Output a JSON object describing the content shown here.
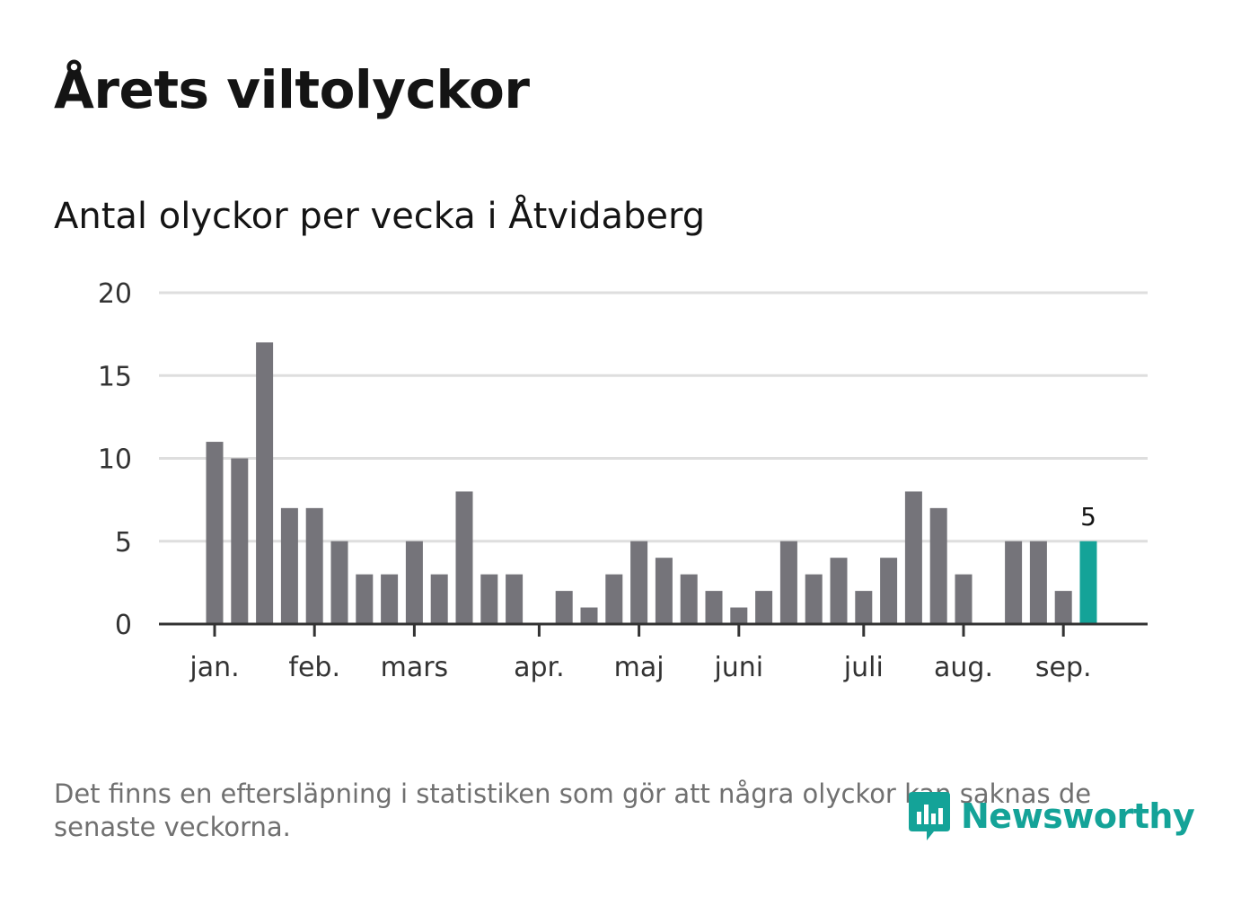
{
  "title": "Årets viltolyckor",
  "subtitle": "Antal olyckor per vecka i Åtvidaberg",
  "footnote": "Det finns en eftersläpning i statistiken som gör att några olyckor kan saknas de senaste veckorna.",
  "logo": {
    "text": "Newsworthy",
    "icon": "newsworthy-logo-icon"
  },
  "colors": {
    "bar": "#75747a",
    "highlight": "#14a398",
    "grid": "#dedede",
    "axis": "#333333"
  },
  "chart_data": {
    "type": "bar",
    "title": "Antal olyckor per vecka i Åtvidaberg",
    "xlabel": "",
    "ylabel": "",
    "ylim": [
      0,
      20
    ],
    "yticks": [
      0,
      5,
      10,
      15,
      20
    ],
    "grid": true,
    "values": [
      11,
      10,
      17,
      7,
      7,
      5,
      3,
      3,
      5,
      3,
      8,
      3,
      3,
      0,
      2,
      1,
      3,
      5,
      4,
      3,
      2,
      1,
      2,
      5,
      3,
      4,
      2,
      4,
      8,
      7,
      3,
      0,
      5,
      5,
      2,
      5
    ],
    "highlight_index": 35,
    "highlight_label": "5",
    "month_labels": [
      {
        "label": "jan.",
        "week": 1
      },
      {
        "label": "feb.",
        "week": 5
      },
      {
        "label": "mars",
        "week": 9
      },
      {
        "label": "apr.",
        "week": 14
      },
      {
        "label": "maj",
        "week": 18
      },
      {
        "label": "juni",
        "week": 22
      },
      {
        "label": "juli",
        "week": 27
      },
      {
        "label": "aug.",
        "week": 31
      },
      {
        "label": "sep.",
        "week": 35
      }
    ]
  }
}
